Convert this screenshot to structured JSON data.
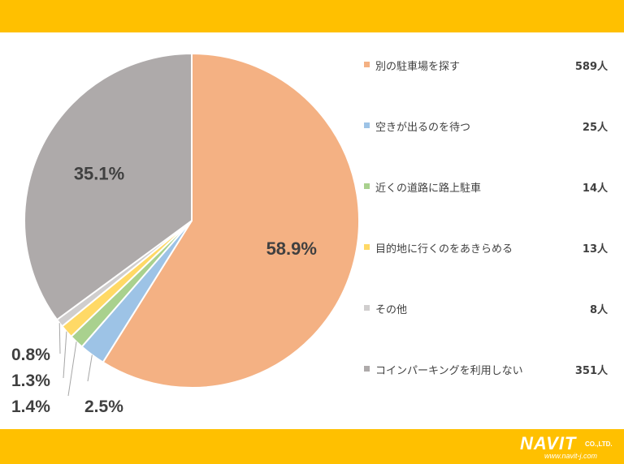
{
  "brand": {
    "logo_text": "NAVIT",
    "logo_suffix": "CO.,LTD.",
    "url": "www.navit-j.com",
    "band_color": "#ffc000"
  },
  "chart_data": {
    "type": "pie",
    "start_angle_deg": 0,
    "direction": "clockwise",
    "slices": [
      {
        "label": "別の駐車場を探す",
        "count": "589人",
        "value": 58.9,
        "pct_label": "58.9%",
        "color": "#f4b183"
      },
      {
        "label": "空きが出るのを待つ",
        "count": "25人",
        "value": 2.5,
        "pct_label": "2.5%",
        "color": "#9dc3e6"
      },
      {
        "label": "近くの道路に路上駐車",
        "count": "14人",
        "value": 1.4,
        "pct_label": "1.4%",
        "color": "#a9d18e"
      },
      {
        "label": "目的地に行くのをあきらめる",
        "count": "13人",
        "value": 1.3,
        "pct_label": "1.3%",
        "color": "#ffd966"
      },
      {
        "label": "その他",
        "count": "8人",
        "value": 0.8,
        "pct_label": "0.8%",
        "color": "#d0cece"
      },
      {
        "label": "コインパーキングを利用しない",
        "count": "351人",
        "value": 35.1,
        "pct_label": "35.1%",
        "color": "#aeaaaa"
      }
    ],
    "legend_position": "right"
  }
}
